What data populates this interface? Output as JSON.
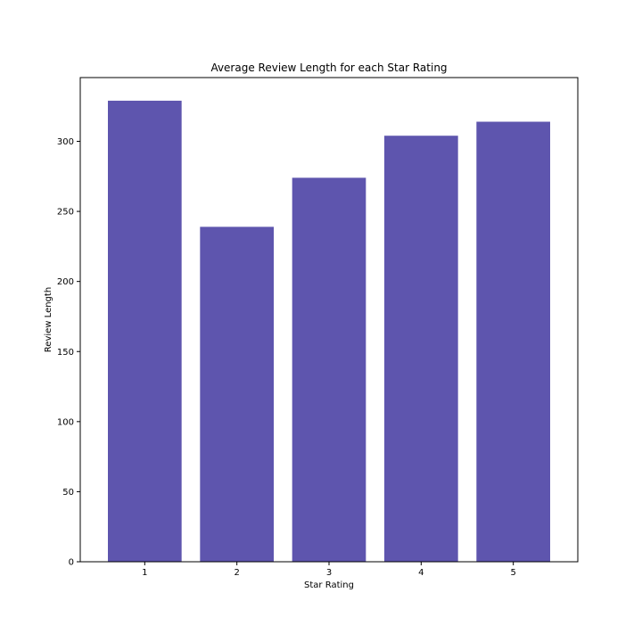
{
  "chart_data": {
    "type": "bar",
    "title": "Average Review Length for each Star Rating",
    "xlabel": "Star Rating",
    "ylabel": "Review Length",
    "categories": [
      "1",
      "2",
      "3",
      "4",
      "5"
    ],
    "values": [
      329,
      239,
      274,
      304,
      314
    ],
    "ylim": [
      0,
      345.5
    ],
    "yticks": [
      0,
      50,
      100,
      150,
      200,
      250,
      300
    ],
    "grid": false,
    "bar_color": "#5e55ae"
  }
}
